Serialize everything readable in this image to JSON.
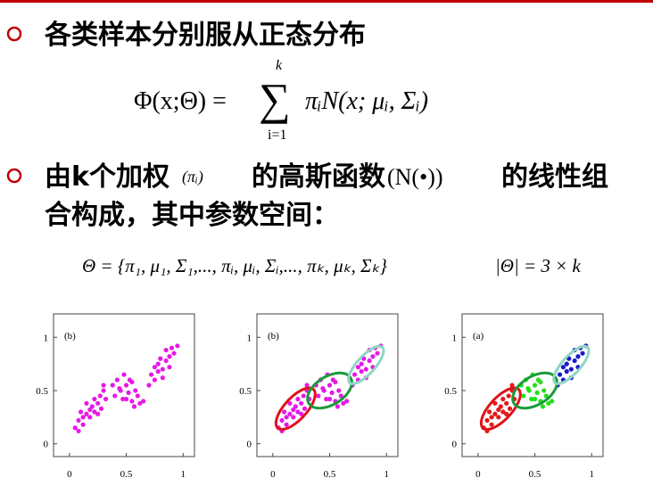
{
  "bullets": [
    {
      "text": "各类样本分别服从正态分布"
    },
    {
      "parts": [
        "由k个加权",
        "(πᵢ)",
        "的高斯函数",
        "(N(•))",
        "的线性组"
      ],
      "line2": "合构成，其中参数空间："
    }
  ],
  "formula1": {
    "lhs": "Φ(x;Θ) =",
    "sum": "∑",
    "upper": "k",
    "lower": "i=1",
    "rhs": "πᵢN(x; μᵢ, Σᵢ)"
  },
  "formula2": {
    "theta": "Θ = {π₁, μ₁, Σ₁,..., πᵢ, μᵢ, Σᵢ,..., πₖ, μₖ, Σₖ}",
    "count": "|Θ| = 3 × k"
  },
  "chart_data": [
    {
      "type": "scatter",
      "panel_label": "(b)",
      "xlim": [
        -0.14,
        1.1
      ],
      "ylim": [
        -0.12,
        1.22
      ],
      "xticks": [
        0,
        0.5,
        1
      ],
      "yticks": [
        0,
        0.5,
        1
      ],
      "series": [
        {
          "color": "#e619e6",
          "x": [
            0.05,
            0.08,
            0.1,
            0.12,
            0.15,
            0.15,
            0.18,
            0.2,
            0.22,
            0.22,
            0.25,
            0.27,
            0.28,
            0.3,
            0.32,
            0.12,
            0.18,
            0.25,
            0.08,
            0.3,
            0.38,
            0.4,
            0.42,
            0.45,
            0.47,
            0.5,
            0.52,
            0.55,
            0.55,
            0.58,
            0.6,
            0.62,
            0.48,
            0.44,
            0.57,
            0.5,
            0.65,
            0.53,
            0.7,
            0.72,
            0.75,
            0.75,
            0.78,
            0.8,
            0.82,
            0.85,
            0.85,
            0.88,
            0.9,
            0.92,
            0.78,
            0.82,
            0.95,
            0.88
          ],
          "y": [
            0.15,
            0.22,
            0.3,
            0.18,
            0.28,
            0.38,
            0.25,
            0.35,
            0.42,
            0.3,
            0.38,
            0.45,
            0.33,
            0.5,
            0.42,
            0.25,
            0.32,
            0.28,
            0.12,
            0.55,
            0.55,
            0.45,
            0.6,
            0.5,
            0.42,
            0.55,
            0.48,
            0.4,
            0.58,
            0.5,
            0.45,
            0.38,
            0.65,
            0.52,
            0.35,
            0.42,
            0.4,
            0.6,
            0.55,
            0.65,
            0.6,
            0.72,
            0.68,
            0.8,
            0.7,
            0.78,
            0.88,
            0.82,
            0.9,
            0.85,
            0.75,
            0.62,
            0.92,
            0.72
          ]
        }
      ],
      "ellipses": []
    },
    {
      "type": "scatter",
      "panel_label": "(b)",
      "xlim": [
        -0.14,
        1.1
      ],
      "ylim": [
        -0.12,
        1.22
      ],
      "xticks": [
        0,
        0.5,
        1
      ],
      "yticks": [
        0,
        0.5,
        1
      ],
      "series": [
        {
          "color": "#e619e6",
          "x": [
            0.05,
            0.08,
            0.1,
            0.12,
            0.15,
            0.15,
            0.18,
            0.2,
            0.22,
            0.22,
            0.25,
            0.27,
            0.28,
            0.3,
            0.32,
            0.12,
            0.18,
            0.25,
            0.08,
            0.3,
            0.38,
            0.4,
            0.42,
            0.45,
            0.47,
            0.5,
            0.52,
            0.55,
            0.55,
            0.58,
            0.6,
            0.62,
            0.48,
            0.44,
            0.57,
            0.5,
            0.65,
            0.53,
            0.7,
            0.72,
            0.75,
            0.75,
            0.78,
            0.8,
            0.82,
            0.85,
            0.85,
            0.88,
            0.9,
            0.92,
            0.78,
            0.82,
            0.95,
            0.88
          ],
          "y": [
            0.15,
            0.22,
            0.3,
            0.18,
            0.28,
            0.38,
            0.25,
            0.35,
            0.42,
            0.3,
            0.38,
            0.45,
            0.33,
            0.5,
            0.42,
            0.25,
            0.32,
            0.28,
            0.12,
            0.55,
            0.55,
            0.45,
            0.6,
            0.5,
            0.42,
            0.55,
            0.48,
            0.4,
            0.58,
            0.5,
            0.45,
            0.38,
            0.65,
            0.52,
            0.35,
            0.42,
            0.4,
            0.6,
            0.55,
            0.65,
            0.6,
            0.72,
            0.68,
            0.8,
            0.7,
            0.78,
            0.88,
            0.82,
            0.9,
            0.85,
            0.75,
            0.62,
            0.92,
            0.72
          ]
        }
      ],
      "ellipses": [
        {
          "color": "#e0101a",
          "cx": 0.2,
          "cy": 0.33,
          "rx": 0.24,
          "ry": 0.1,
          "angle": 50
        },
        {
          "color": "#1a9a3a",
          "cx": 0.5,
          "cy": 0.5,
          "rx": 0.22,
          "ry": 0.13,
          "angle": 35
        },
        {
          "color": "#8fd6c4",
          "cx": 0.82,
          "cy": 0.74,
          "rx": 0.22,
          "ry": 0.08,
          "angle": 50
        }
      ]
    },
    {
      "type": "scatter",
      "panel_label": "(a)",
      "xlim": [
        -0.14,
        1.1
      ],
      "ylim": [
        -0.12,
        1.22
      ],
      "xticks": [
        0,
        0.5,
        1
      ],
      "yticks": [
        0,
        0.5,
        1
      ],
      "series": [
        {
          "color": "#e31a1a",
          "x": [
            0.05,
            0.08,
            0.1,
            0.12,
            0.15,
            0.15,
            0.18,
            0.2,
            0.22,
            0.22,
            0.25,
            0.27,
            0.28,
            0.3,
            0.32,
            0.12,
            0.18,
            0.25,
            0.08,
            0.3
          ],
          "y": [
            0.15,
            0.22,
            0.3,
            0.18,
            0.28,
            0.38,
            0.25,
            0.35,
            0.42,
            0.3,
            0.38,
            0.45,
            0.33,
            0.5,
            0.42,
            0.25,
            0.32,
            0.28,
            0.12,
            0.55
          ]
        },
        {
          "color": "#22e01a",
          "x": [
            0.38,
            0.4,
            0.42,
            0.45,
            0.47,
            0.5,
            0.52,
            0.55,
            0.55,
            0.58,
            0.6,
            0.62,
            0.48,
            0.44,
            0.57,
            0.5,
            0.65,
            0.53
          ],
          "y": [
            0.55,
            0.45,
            0.6,
            0.5,
            0.42,
            0.55,
            0.48,
            0.4,
            0.58,
            0.5,
            0.45,
            0.38,
            0.65,
            0.52,
            0.35,
            0.42,
            0.4,
            0.6
          ]
        },
        {
          "color": "#1a1ad0",
          "x": [
            0.7,
            0.72,
            0.75,
            0.75,
            0.78,
            0.8,
            0.82,
            0.85,
            0.85,
            0.88,
            0.9,
            0.92,
            0.78,
            0.82,
            0.95,
            0.88
          ],
          "y": [
            0.55,
            0.65,
            0.6,
            0.72,
            0.68,
            0.8,
            0.7,
            0.78,
            0.88,
            0.82,
            0.9,
            0.85,
            0.75,
            0.62,
            0.92,
            0.72
          ]
        }
      ],
      "ellipses": [
        {
          "color": "#e0101a",
          "cx": 0.2,
          "cy": 0.33,
          "rx": 0.24,
          "ry": 0.1,
          "angle": 50
        },
        {
          "color": "#1a9a3a",
          "cx": 0.5,
          "cy": 0.5,
          "rx": 0.22,
          "ry": 0.13,
          "angle": 35
        },
        {
          "color": "#8fd6c4",
          "cx": 0.82,
          "cy": 0.74,
          "rx": 0.22,
          "ry": 0.08,
          "angle": 50
        }
      ]
    }
  ]
}
